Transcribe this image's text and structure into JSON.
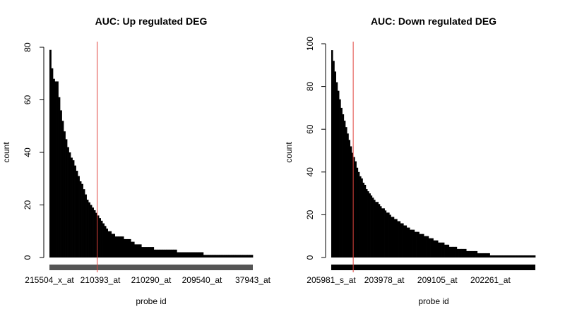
{
  "chart_data": [
    {
      "type": "bar",
      "title": "AUC: Up regulated DEG",
      "xlabel": "probe id",
      "ylabel": "count",
      "ylim": [
        0,
        80
      ],
      "yticks": [
        0,
        20,
        40,
        60,
        80
      ],
      "n_bars": 115,
      "x_tick_labels": [
        "215504_x_at",
        "210393_at",
        "210290_at",
        "209540_at",
        "37943_at"
      ],
      "cutoff_bar_index": 27,
      "cutoff_color": "#e0443e",
      "bar_color": "#000000",
      "values": [
        79,
        72,
        68,
        67,
        67,
        61,
        56,
        52,
        48,
        45,
        42,
        40,
        38,
        37,
        35,
        33,
        31,
        29,
        28,
        26,
        24,
        22,
        21,
        20,
        19,
        18,
        17,
        16,
        15,
        14,
        13,
        12,
        11,
        10,
        10,
        9,
        9,
        8,
        8,
        8,
        8,
        8,
        7,
        7,
        7,
        7,
        6,
        6,
        5,
        5,
        5,
        5,
        4,
        4,
        4,
        4,
        4,
        4,
        4,
        3,
        3,
        3,
        3,
        3,
        3,
        3,
        3,
        3,
        3,
        3,
        3,
        3,
        2,
        2,
        2,
        2,
        2,
        2,
        2,
        2,
        2,
        2,
        2,
        2,
        2,
        2,
        2,
        1,
        1,
        1,
        1,
        1,
        1,
        1,
        1,
        1,
        1,
        1,
        1,
        1,
        1,
        1,
        1,
        1,
        1,
        1,
        1,
        1,
        1,
        1,
        1,
        1,
        1,
        1,
        1
      ]
    },
    {
      "type": "bar",
      "title": "AUC: Down regulated DEG",
      "xlabel": "probe id",
      "ylabel": "count",
      "ylim": [
        0,
        100
      ],
      "yticks": [
        0,
        20,
        40,
        60,
        80,
        100
      ],
      "n_bars": 130,
      "x_tick_labels": [
        "205981_s_at",
        "203978_at",
        "209105_at",
        "202261_at"
      ],
      "cutoff_bar_index": 14,
      "cutoff_color": "#e0443e",
      "bar_color": "#000000",
      "values": [
        97,
        92,
        87,
        82,
        78,
        74,
        70,
        67,
        64,
        61,
        58,
        55,
        52,
        49,
        47,
        45,
        42,
        40,
        38,
        37,
        35,
        34,
        32,
        31,
        30,
        29,
        28,
        27,
        26,
        26,
        25,
        24,
        23,
        23,
        22,
        21,
        21,
        20,
        19,
        19,
        18,
        18,
        17,
        17,
        16,
        16,
        15,
        15,
        14,
        14,
        13,
        13,
        13,
        12,
        12,
        12,
        11,
        11,
        11,
        10,
        10,
        10,
        9,
        9,
        9,
        8,
        8,
        8,
        7,
        7,
        7,
        7,
        6,
        6,
        6,
        5,
        5,
        5,
        5,
        5,
        4,
        4,
        4,
        4,
        4,
        4,
        3,
        3,
        3,
        3,
        3,
        3,
        3,
        2,
        2,
        2,
        2,
        2,
        2,
        2,
        2,
        1,
        1,
        1,
        1,
        1,
        1,
        1,
        1,
        1,
        1,
        1,
        1,
        1,
        1,
        1,
        1,
        1,
        1,
        1,
        1,
        1,
        1,
        1,
        1,
        1,
        1,
        1,
        1,
        1
      ]
    }
  ]
}
